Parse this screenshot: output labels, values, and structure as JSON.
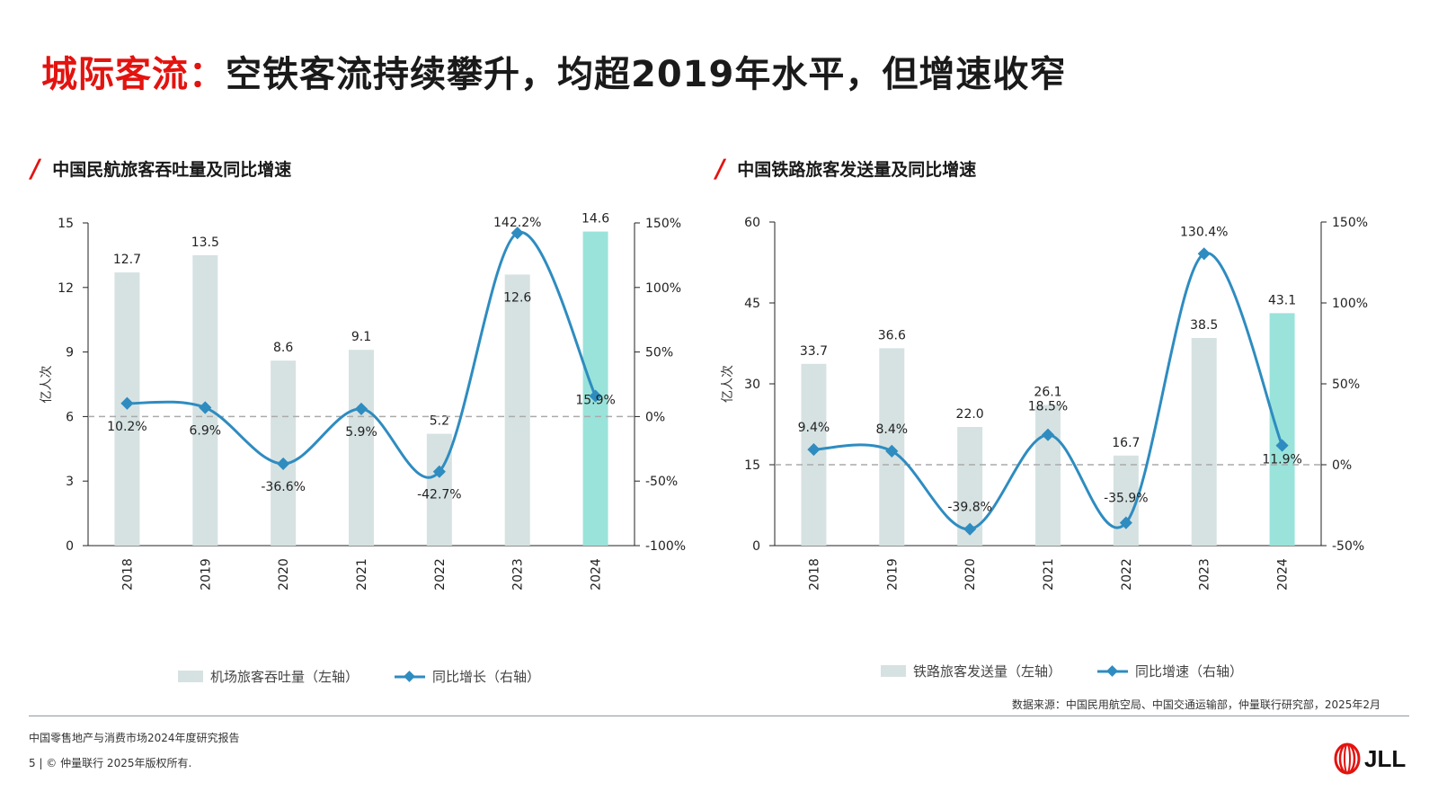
{
  "title": {
    "highlight": "城际客流：",
    "rest": "空铁客流持续攀升，均超2019年水平，但增速收窄"
  },
  "left": {
    "section_title": "中国民航旅客吞吐量及同比增速",
    "legend": {
      "bar": "机场旅客吞吐量（左轴）",
      "line": "同比增长（右轴）"
    }
  },
  "right": {
    "section_title": "中国铁路旅客发送量及同比增速",
    "legend": {
      "bar": "铁路旅客发送量（左轴）",
      "line": "同比增速（右轴）"
    }
  },
  "source": "数据来源：中国民用航空局、中国交通运输部，仲量联行研究部，2025年2月",
  "footer": {
    "report": "中国零售地产与消费市场2024年度研究报告",
    "copyright": "5 | © 仲量联行 2025年版权所有."
  },
  "logo": {
    "text": "JLL"
  },
  "colors": {
    "bar": "#d6e2e2",
    "bar_highlight": "#9ae3da",
    "line": "#2e8cc0",
    "accent": "#e3130f"
  },
  "chart_data": [
    {
      "type": "bar",
      "title": "中国民航旅客吞吐量及同比增速",
      "categories": [
        "2018",
        "2019",
        "2020",
        "2021",
        "2022",
        "2023",
        "2024"
      ],
      "ylabel": "亿人次",
      "ylim": [
        0,
        15
      ],
      "yticks": [
        0,
        3,
        6,
        9,
        12,
        15
      ],
      "y2lim": [
        -100,
        150
      ],
      "y2ticks": [
        "-100%",
        "-50%",
        "0%",
        "50%",
        "100%",
        "150%"
      ],
      "series": [
        {
          "name": "机场旅客吞吐量（左轴）",
          "type": "bar",
          "axis": "left",
          "values": [
            12.7,
            13.5,
            8.6,
            9.1,
            5.2,
            12.6,
            14.6
          ],
          "labels": [
            "12.7",
            "13.5",
            "8.6",
            "9.1",
            "5.2",
            "12.6",
            "14.6"
          ]
        },
        {
          "name": "同比增长（右轴）",
          "type": "line",
          "axis": "right",
          "values": [
            10.2,
            6.9,
            -36.6,
            5.9,
            -42.7,
            142.2,
            15.9
          ],
          "labels": [
            "10.2%",
            "6.9%",
            "-36.6%",
            "5.9%",
            "-42.7%",
            "142.2%",
            "15.9%"
          ]
        }
      ],
      "highlight_category": "2024",
      "reference_line_y2": 0
    },
    {
      "type": "bar",
      "title": "中国铁路旅客发送量及同比增速",
      "categories": [
        "2018",
        "2019",
        "2020",
        "2021",
        "2022",
        "2023",
        "2024"
      ],
      "ylabel": "亿人次",
      "ylim": [
        0,
        60
      ],
      "yticks": [
        0,
        15,
        30,
        45,
        60
      ],
      "y2lim": [
        -50,
        150
      ],
      "y2ticks": [
        "-50%",
        "0%",
        "50%",
        "100%",
        "150%"
      ],
      "series": [
        {
          "name": "铁路旅客发送量（左轴）",
          "type": "bar",
          "axis": "left",
          "values": [
            33.7,
            36.6,
            22.0,
            26.1,
            16.7,
            38.5,
            43.1
          ],
          "labels": [
            "33.7",
            "36.6",
            "22.0",
            "26.1",
            "16.7",
            "38.5",
            "43.1"
          ]
        },
        {
          "name": "同比增速（右轴）",
          "type": "line",
          "axis": "right",
          "values": [
            9.4,
            8.4,
            -39.8,
            18.5,
            -35.9,
            130.4,
            11.9
          ],
          "labels": [
            "9.4%",
            "8.4%",
            "-39.8%",
            "18.5%",
            "-35.9%",
            "130.4%",
            "11.9%"
          ]
        }
      ],
      "highlight_category": "2024",
      "reference_line_y2": 0
    }
  ]
}
